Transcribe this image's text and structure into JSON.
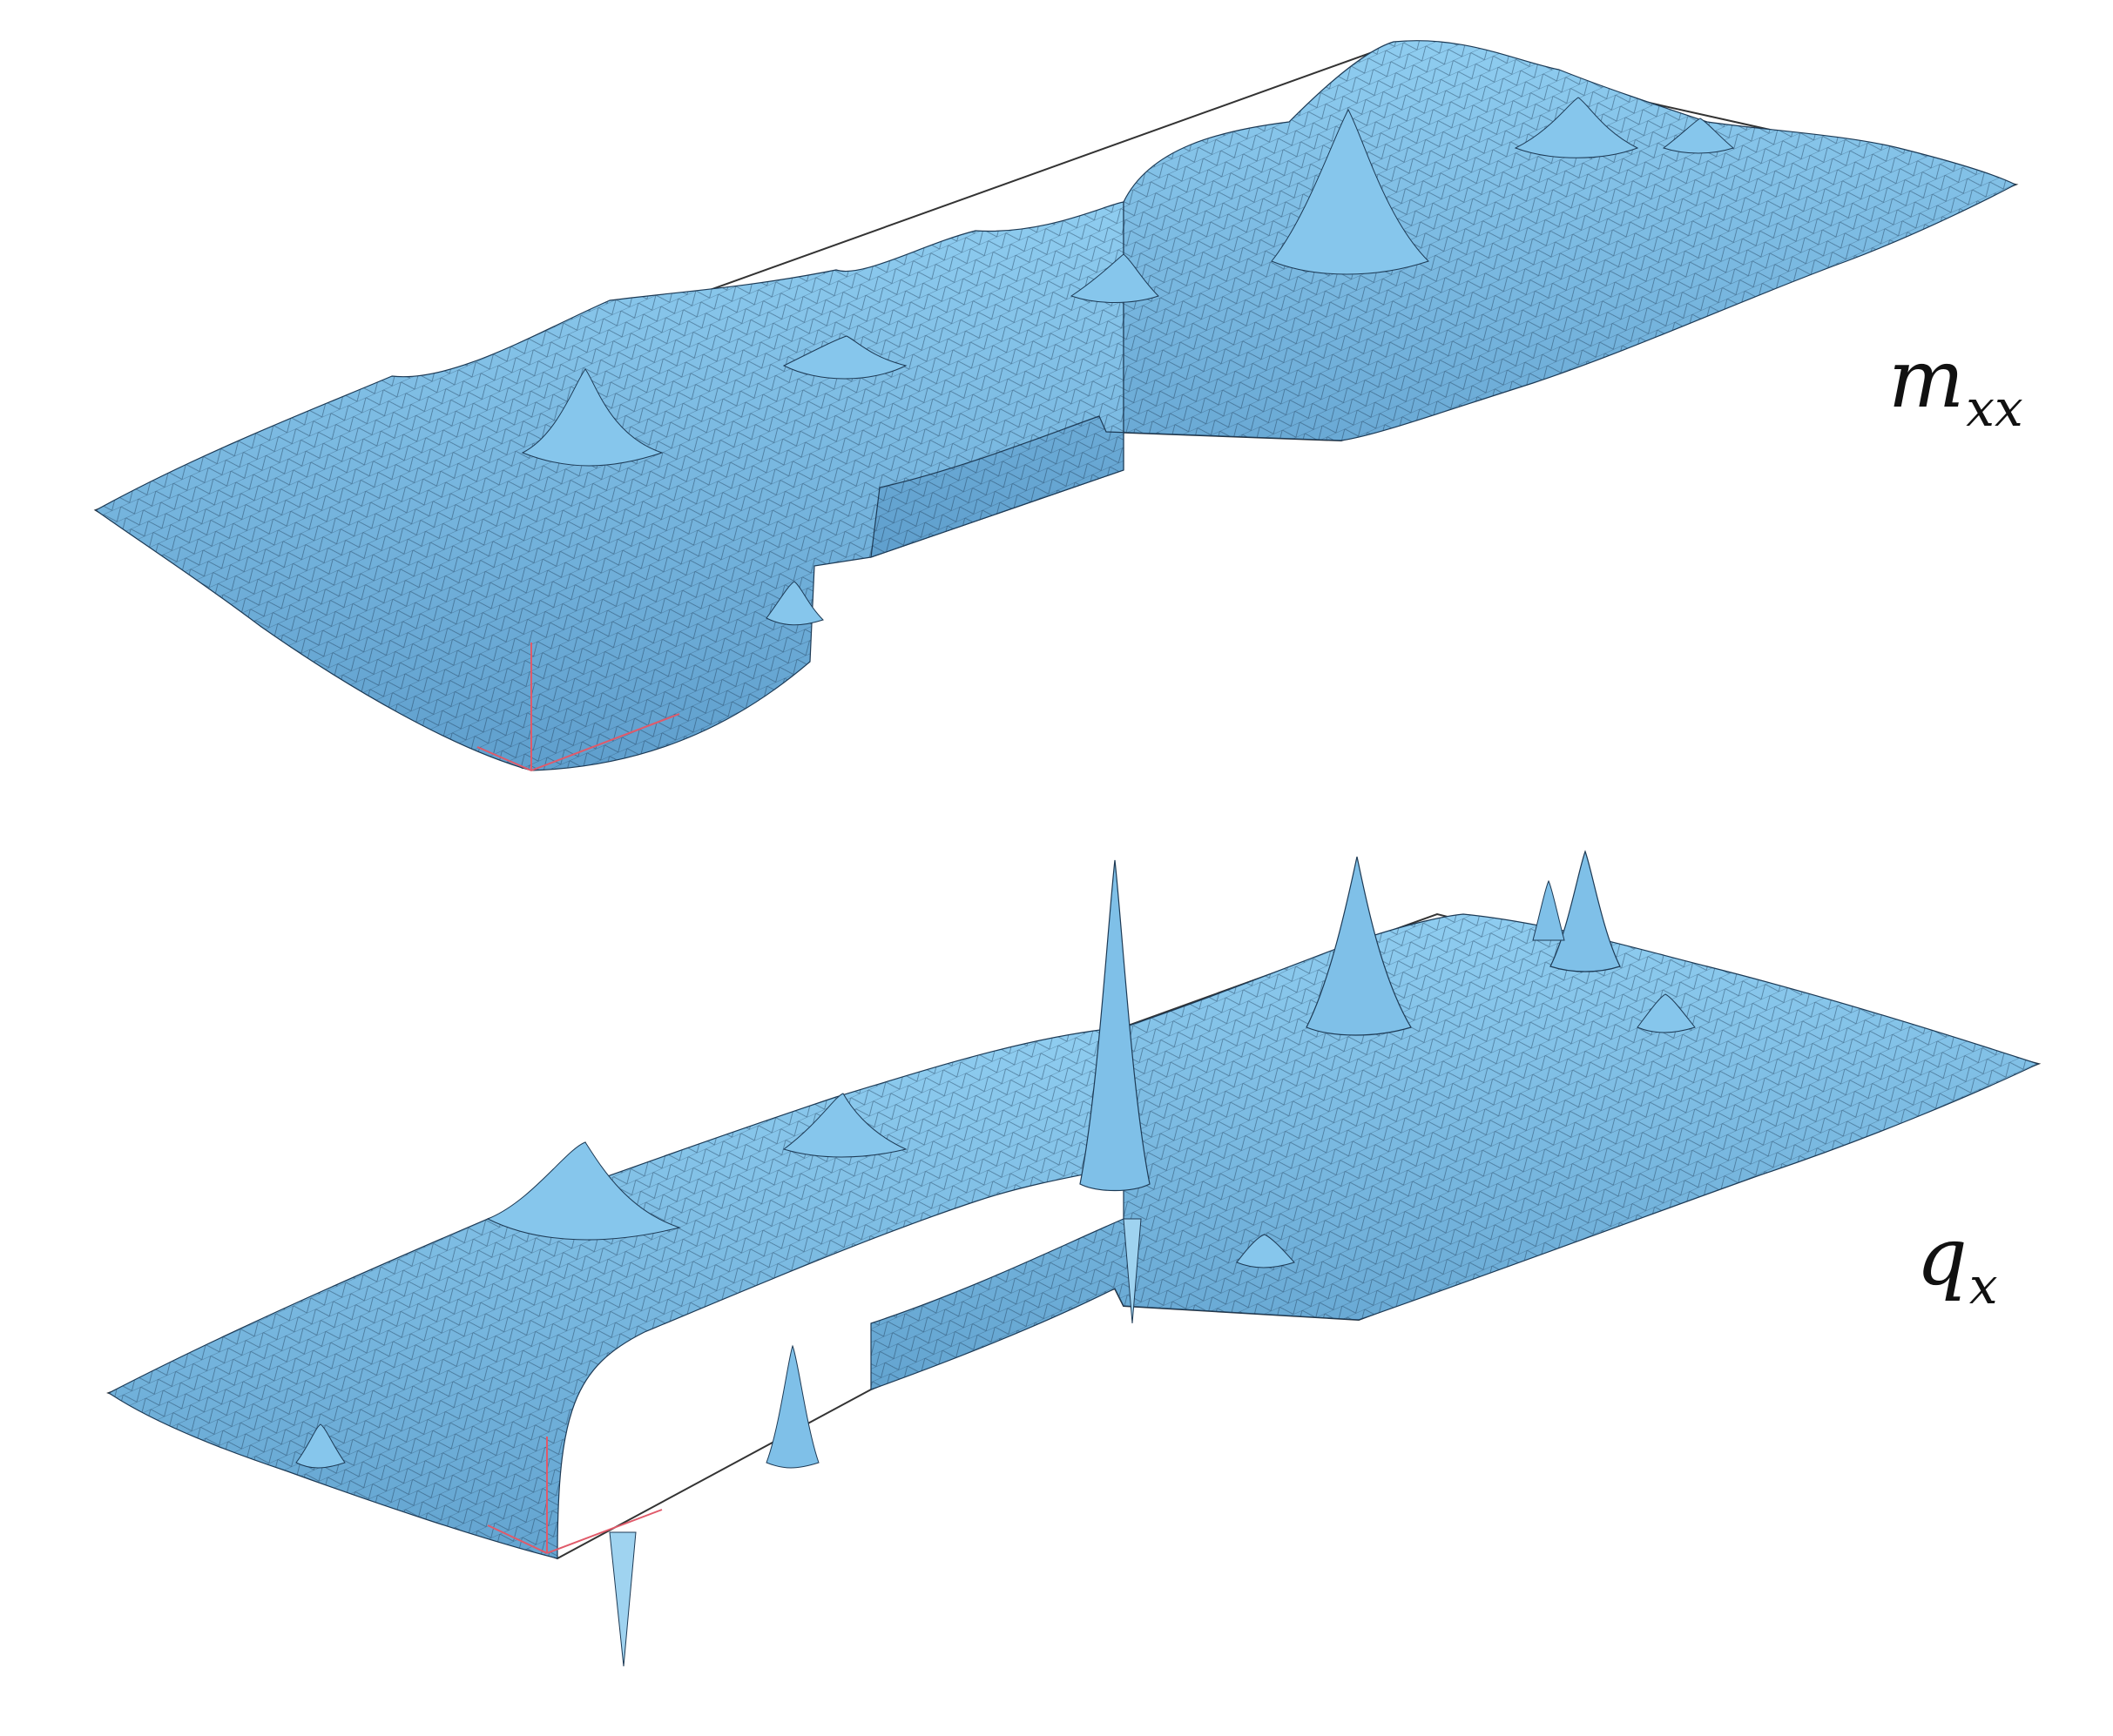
{
  "colors": {
    "surface": "#7bbfe8",
    "surface_shade": "#5e9fcd",
    "surface_dark": "#3f7fae",
    "mesh": "#1d3a55",
    "frame": "#333333",
    "axis": "#e05a6a",
    "background": "#ffffff"
  },
  "panels": [
    {
      "id": "mxx",
      "label_main": "m",
      "label_sub": "xx"
    },
    {
      "id": "qx",
      "label_main": "q",
      "label_sub": "x"
    }
  ]
}
